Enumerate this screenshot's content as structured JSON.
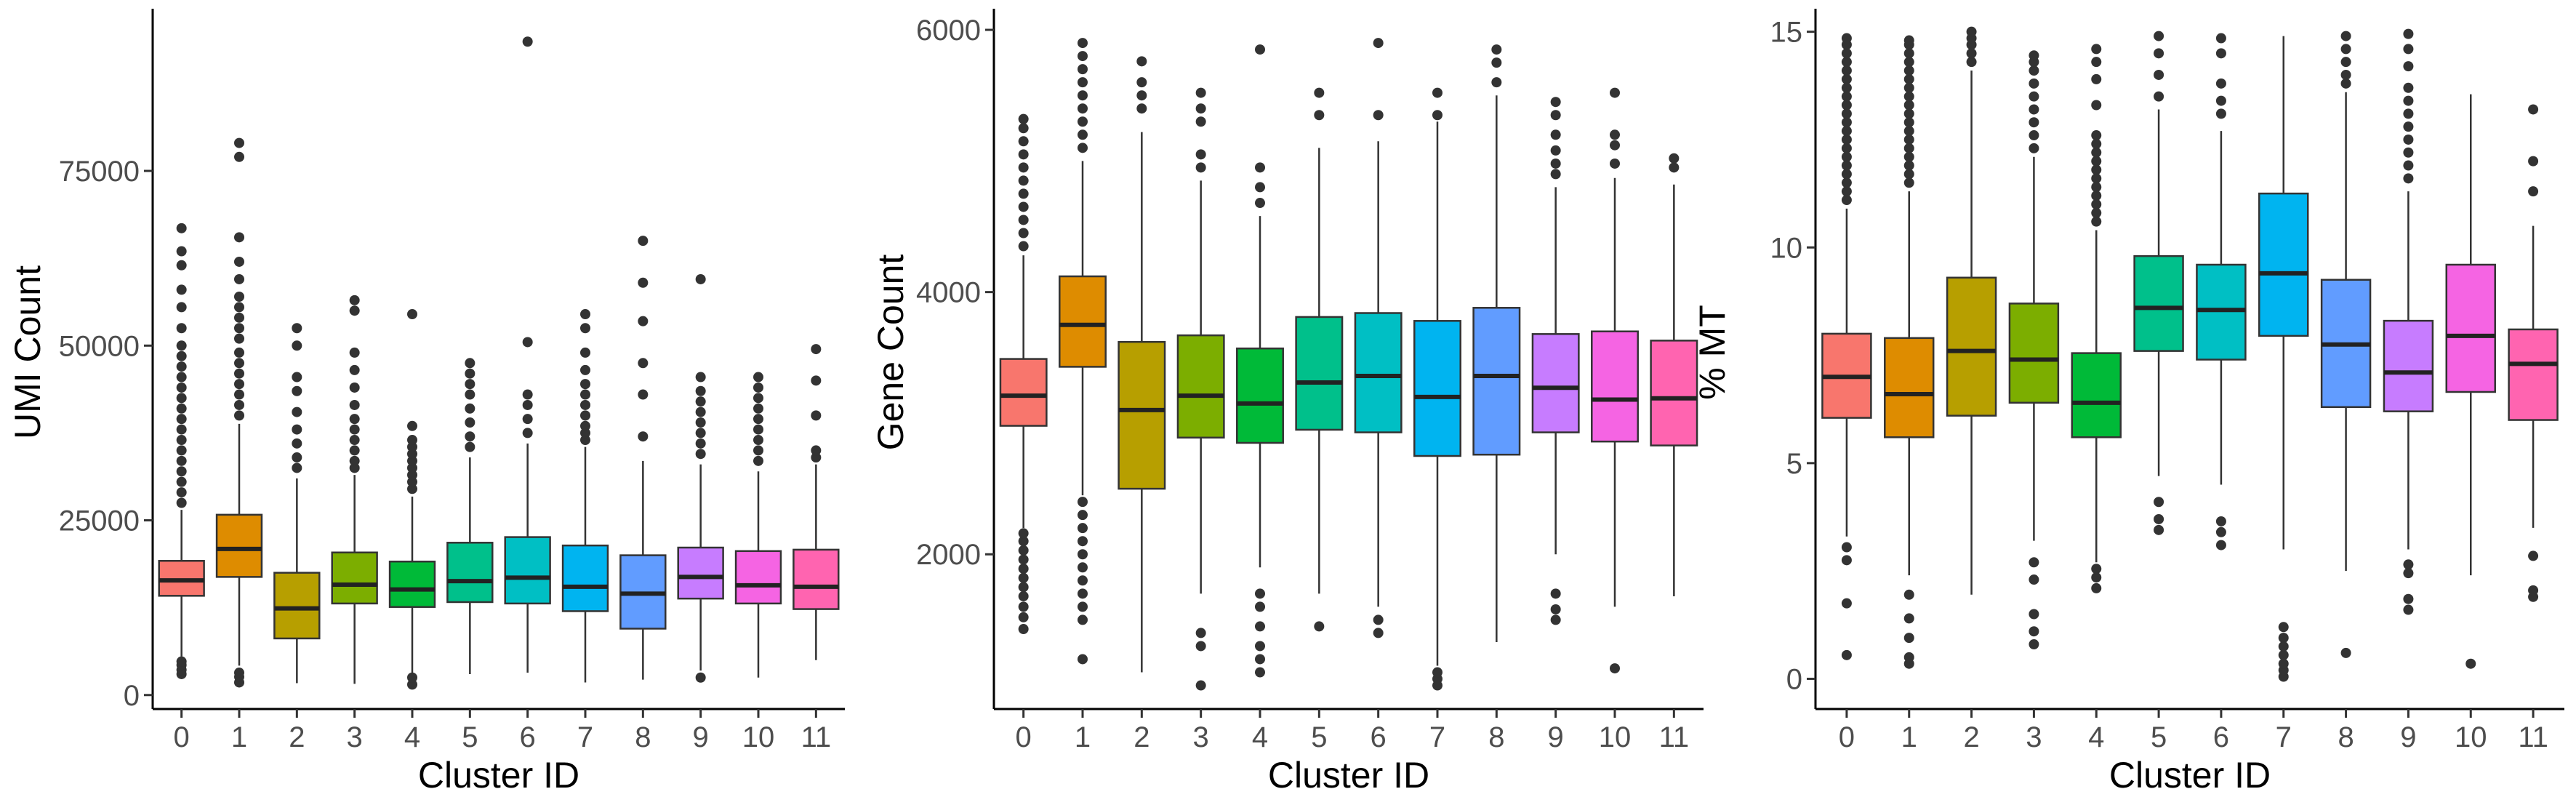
{
  "chart_data": [
    {
      "type": "box",
      "xlabel": "Cluster ID",
      "ylabel": "UMI Count",
      "categories": [
        "0",
        "1",
        "2",
        "3",
        "4",
        "5",
        "6",
        "7",
        "8",
        "9",
        "10",
        "11"
      ],
      "yticks": [
        0,
        25000,
        50000,
        75000
      ],
      "ylim": [
        -2000,
        98000
      ],
      "boxes": [
        {
          "q1": 14200,
          "median": 16400,
          "q3": 19200,
          "lo": 5500,
          "hi": 26500,
          "outliers": [
            3000,
            3600,
            4300,
            4800,
            27500,
            29000,
            30500,
            32000,
            33500,
            35000,
            36500,
            38000,
            39500,
            41000,
            42500,
            44000,
            45500,
            47000,
            48500,
            50000,
            52500,
            55500,
            58000,
            61500,
            63500,
            66800
          ]
        },
        {
          "q1": 16900,
          "median": 20900,
          "q3": 25800,
          "lo": 4200,
          "hi": 38800,
          "outliers": [
            1800,
            2600,
            3200,
            40000,
            41500,
            43000,
            44500,
            46000,
            47500,
            49000,
            51000,
            52500,
            54000,
            55500,
            57000,
            59500,
            62000,
            65500,
            77000,
            79000
          ]
        },
        {
          "q1": 8100,
          "median": 12400,
          "q3": 17500,
          "lo": 1700,
          "hi": 31000,
          "outliers": [
            32500,
            34000,
            36000,
            38000,
            40500,
            43500,
            45500,
            50000,
            52500
          ]
        },
        {
          "q1": 13100,
          "median": 15800,
          "q3": 20400,
          "lo": 1600,
          "hi": 31500,
          "outliers": [
            32500,
            33500,
            35000,
            36500,
            38000,
            39500,
            41500,
            44000,
            46500,
            49000,
            55000,
            56500
          ]
        },
        {
          "q1": 12600,
          "median": 15100,
          "q3": 19100,
          "lo": 3200,
          "hi": 28400,
          "outliers": [
            1500,
            2500,
            29500,
            30500,
            31500,
            32500,
            33500,
            34500,
            35500,
            36500,
            38500,
            54500
          ]
        },
        {
          "q1": 13300,
          "median": 16300,
          "q3": 21800,
          "lo": 3000,
          "hi": 34000,
          "outliers": [
            35500,
            37000,
            39000,
            41000,
            43000,
            44500,
            46000,
            47500
          ]
        },
        {
          "q1": 13100,
          "median": 16800,
          "q3": 22600,
          "lo": 3200,
          "hi": 36000,
          "outliers": [
            37500,
            39500,
            41500,
            43000,
            50500,
            93500
          ]
        },
        {
          "q1": 12000,
          "median": 15500,
          "q3": 21400,
          "lo": 1800,
          "hi": 35500,
          "outliers": [
            36500,
            37500,
            38500,
            40000,
            41500,
            43000,
            44500,
            46500,
            49000,
            52500,
            54500
          ]
        },
        {
          "q1": 9500,
          "median": 14500,
          "q3": 20000,
          "lo": 2200,
          "hi": 33500,
          "outliers": [
            37000,
            43000,
            47500,
            53500,
            59000,
            65000
          ]
        },
        {
          "q1": 13800,
          "median": 16900,
          "q3": 21100,
          "lo": 3500,
          "hi": 33000,
          "outliers": [
            2500,
            34500,
            36000,
            37500,
            39000,
            40500,
            42000,
            43500,
            45500,
            59500
          ]
        },
        {
          "q1": 13100,
          "median": 15700,
          "q3": 20600,
          "lo": 2500,
          "hi": 32000,
          "outliers": [
            33500,
            35000,
            36500,
            38000,
            39500,
            41000,
            42500,
            44000,
            45500
          ]
        },
        {
          "q1": 12300,
          "median": 15500,
          "q3": 20800,
          "lo": 5000,
          "hi": 33000,
          "outliers": [
            34000,
            35000,
            40000,
            45000,
            49500
          ]
        }
      ]
    },
    {
      "type": "box",
      "xlabel": "Cluster ID",
      "ylabel": "Gene Count",
      "categories": [
        "0",
        "1",
        "2",
        "3",
        "4",
        "5",
        "6",
        "7",
        "8",
        "9",
        "10",
        "11"
      ],
      "yticks": [
        2000,
        4000,
        6000
      ],
      "ylim": [
        820,
        6150
      ],
      "boxes": [
        {
          "q1": 2980,
          "median": 3210,
          "q3": 3490,
          "lo": 2200,
          "hi": 4280,
          "outliers": [
            1430,
            1520,
            1600,
            1680,
            1750,
            1820,
            1890,
            1960,
            2030,
            2100,
            2160,
            4350,
            4450,
            4550,
            4650,
            4750,
            4850,
            4950,
            5050,
            5150,
            5250,
            5320
          ]
        },
        {
          "q1": 3430,
          "median": 3750,
          "q3": 4120,
          "lo": 2450,
          "hi": 5000,
          "outliers": [
            1200,
            1500,
            1600,
            1700,
            1800,
            1900,
            2000,
            2100,
            2200,
            2300,
            2400,
            5100,
            5200,
            5300,
            5400,
            5500,
            5600,
            5700,
            5800,
            5900
          ]
        },
        {
          "q1": 2500,
          "median": 3100,
          "q3": 3620,
          "lo": 1100,
          "hi": 5220,
          "outliers": [
            5400,
            5500,
            5600,
            5760
          ]
        },
        {
          "q1": 2890,
          "median": 3210,
          "q3": 3670,
          "lo": 1700,
          "hi": 4850,
          "outliers": [
            1000,
            1300,
            1400,
            4950,
            5050,
            5300,
            5400,
            5520
          ]
        },
        {
          "q1": 2850,
          "median": 3150,
          "q3": 3570,
          "lo": 1900,
          "hi": 4580,
          "outliers": [
            1100,
            1200,
            1300,
            1450,
            1600,
            1700,
            4680,
            4800,
            4950,
            5850
          ]
        },
        {
          "q1": 2950,
          "median": 3310,
          "q3": 3810,
          "lo": 1700,
          "hi": 5100,
          "outliers": [
            1450,
            5350,
            5520
          ]
        },
        {
          "q1": 2930,
          "median": 3360,
          "q3": 3840,
          "lo": 1600,
          "hi": 5150,
          "outliers": [
            1400,
            1500,
            5350,
            5900
          ]
        },
        {
          "q1": 2750,
          "median": 3200,
          "q3": 3780,
          "lo": 1150,
          "hi": 5300,
          "outliers": [
            1000,
            1050,
            1100,
            5350,
            5520
          ]
        },
        {
          "q1": 2760,
          "median": 3360,
          "q3": 3880,
          "lo": 1330,
          "hi": 5500,
          "outliers": [
            5600,
            5750,
            5850
          ]
        },
        {
          "q1": 2930,
          "median": 3270,
          "q3": 3680,
          "lo": 2000,
          "hi": 4800,
          "outliers": [
            1500,
            1580,
            1700,
            4900,
            4980,
            5080,
            5200,
            5350,
            5450
          ]
        },
        {
          "q1": 2860,
          "median": 3180,
          "q3": 3700,
          "lo": 1600,
          "hi": 4870,
          "outliers": [
            1130,
            4980,
            5120,
            5200,
            5520
          ]
        },
        {
          "q1": 2830,
          "median": 3190,
          "q3": 3630,
          "lo": 1680,
          "hi": 4820,
          "outliers": [
            4950,
            5020
          ]
        }
      ]
    },
    {
      "type": "box",
      "xlabel": "Cluster ID",
      "ylabel": "% MT",
      "categories": [
        "0",
        "1",
        "2",
        "3",
        "4",
        "5",
        "6",
        "7",
        "8",
        "9",
        "10",
        "11"
      ],
      "yticks": [
        0,
        5,
        10,
        15
      ],
      "ylim": [
        -0.7,
        15.5
      ],
      "boxes": [
        {
          "q1": 6.05,
          "median": 7.0,
          "q3": 8.0,
          "lo": 3.3,
          "hi": 10.9,
          "outliers": [
            0.55,
            1.75,
            2.75,
            3.05,
            11.1,
            11.3,
            11.5,
            11.7,
            11.9,
            12.1,
            12.3,
            12.5,
            12.7,
            12.9,
            13.1,
            13.3,
            13.5,
            13.7,
            13.9,
            14.1,
            14.3,
            14.5,
            14.7,
            14.85
          ]
        },
        {
          "q1": 5.6,
          "median": 6.6,
          "q3": 7.9,
          "lo": 2.4,
          "hi": 11.3,
          "outliers": [
            0.35,
            0.5,
            0.95,
            1.4,
            1.95,
            11.5,
            11.7,
            11.9,
            12.1,
            12.3,
            12.5,
            12.7,
            12.9,
            13.1,
            13.3,
            13.5,
            13.7,
            13.9,
            14.1,
            14.3,
            14.5,
            14.7,
            14.8
          ]
        },
        {
          "q1": 6.1,
          "median": 7.6,
          "q3": 9.3,
          "lo": 1.95,
          "hi": 14.1,
          "outliers": [
            14.3,
            14.5,
            14.7,
            14.85,
            15.0
          ]
        },
        {
          "q1": 6.4,
          "median": 7.4,
          "q3": 8.7,
          "lo": 3.2,
          "hi": 12.1,
          "outliers": [
            0.8,
            1.1,
            1.5,
            2.3,
            2.7,
            12.3,
            12.6,
            12.9,
            13.2,
            13.5,
            13.8,
            14.1,
            14.3,
            14.45
          ]
        },
        {
          "q1": 5.6,
          "median": 6.4,
          "q3": 7.55,
          "lo": 2.7,
          "hi": 10.4,
          "outliers": [
            2.1,
            2.35,
            2.55,
            10.6,
            10.8,
            11.0,
            11.2,
            11.4,
            11.6,
            11.8,
            12.0,
            12.2,
            12.4,
            12.6,
            13.3,
            13.9,
            14.3,
            14.6
          ]
        },
        {
          "q1": 7.6,
          "median": 8.6,
          "q3": 9.8,
          "lo": 4.7,
          "hi": 13.2,
          "outliers": [
            3.45,
            3.7,
            4.1,
            13.5,
            14.0,
            14.5,
            14.9
          ]
        },
        {
          "q1": 7.4,
          "median": 8.55,
          "q3": 9.6,
          "lo": 4.5,
          "hi": 12.7,
          "outliers": [
            3.1,
            3.4,
            3.65,
            13.1,
            13.4,
            13.8,
            14.5,
            14.85
          ]
        },
        {
          "q1": 7.95,
          "median": 9.4,
          "q3": 11.25,
          "lo": 3.0,
          "hi": 14.9,
          "outliers": [
            0.05,
            0.2,
            0.35,
            0.55,
            0.75,
            0.95,
            1.2
          ]
        },
        {
          "q1": 6.3,
          "median": 7.75,
          "q3": 9.25,
          "lo": 2.5,
          "hi": 13.6,
          "outliers": [
            0.6,
            13.8,
            14.0,
            14.3,
            14.6,
            14.9
          ]
        },
        {
          "q1": 6.2,
          "median": 7.1,
          "q3": 8.3,
          "lo": 3.0,
          "hi": 11.3,
          "outliers": [
            1.6,
            1.85,
            2.45,
            2.65,
            11.6,
            11.9,
            12.2,
            12.5,
            12.8,
            13.1,
            13.4,
            13.7,
            14.2,
            14.6,
            14.95
          ]
        },
        {
          "q1": 6.65,
          "median": 7.95,
          "q3": 9.6,
          "lo": 2.4,
          "hi": 13.55,
          "outliers": [
            0.35
          ]
        },
        {
          "q1": 6.0,
          "median": 7.3,
          "q3": 8.1,
          "lo": 3.5,
          "hi": 10.5,
          "outliers": [
            1.9,
            2.05,
            2.85,
            11.3,
            12.0,
            13.2
          ]
        }
      ]
    }
  ],
  "colors": [
    "#F8766D",
    "#DE8C00",
    "#B79F00",
    "#7CAE00",
    "#00BA38",
    "#00C08B",
    "#00BFC4",
    "#00B4F0",
    "#619CFF",
    "#C77CFF",
    "#F564E3",
    "#FF64B0"
  ]
}
